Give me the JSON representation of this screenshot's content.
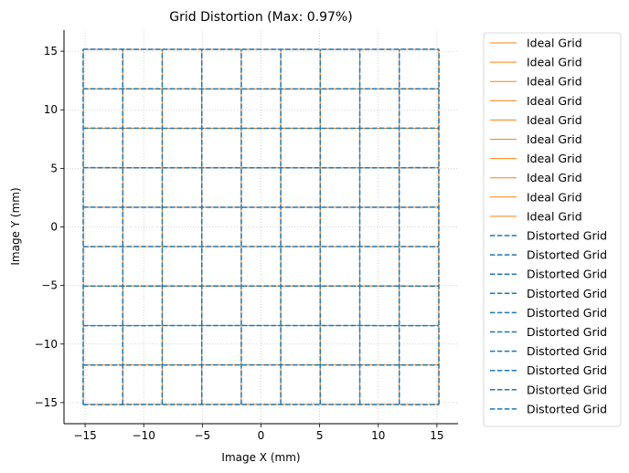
{
  "chart_data": {
    "type": "line",
    "title": "Grid Distortion (Max: 0.97%)",
    "xlabel": "Image X (mm)",
    "ylabel": "Image Y (mm)",
    "xlim": [
      -16.8,
      16.8
    ],
    "ylim": [
      -16.8,
      16.8
    ],
    "xticks": [
      -15,
      -10,
      -5,
      0,
      5,
      10,
      15
    ],
    "yticks": [
      -15,
      -10,
      -5,
      0,
      5,
      10,
      15
    ],
    "xtick_labels": [
      "−15",
      "−10",
      "−5",
      "0",
      "5",
      "10",
      "15"
    ],
    "ytick_labels": [
      "−15",
      "−10",
      "−5",
      "0",
      "5",
      "10",
      "15"
    ],
    "grid": true,
    "legend_position": "outside-right",
    "grid_lines": [
      -15.15,
      -11.78,
      -8.42,
      -5.05,
      -1.68,
      1.68,
      5.05,
      8.42,
      11.78,
      15.15
    ],
    "max_distortion_pct": 0.97,
    "series": [
      {
        "name": "Ideal Grid",
        "style": "solid",
        "color": "#ff7f0e"
      },
      {
        "name": "Ideal Grid",
        "style": "solid",
        "color": "#ff7f0e"
      },
      {
        "name": "Ideal Grid",
        "style": "solid",
        "color": "#ff7f0e"
      },
      {
        "name": "Ideal Grid",
        "style": "solid",
        "color": "#ff7f0e"
      },
      {
        "name": "Ideal Grid",
        "style": "solid",
        "color": "#ff7f0e"
      },
      {
        "name": "Ideal Grid",
        "style": "solid",
        "color": "#ff7f0e"
      },
      {
        "name": "Ideal Grid",
        "style": "solid",
        "color": "#ff7f0e"
      },
      {
        "name": "Ideal Grid",
        "style": "solid",
        "color": "#ff7f0e"
      },
      {
        "name": "Ideal Grid",
        "style": "solid",
        "color": "#ff7f0e"
      },
      {
        "name": "Ideal Grid",
        "style": "solid",
        "color": "#ff7f0e"
      },
      {
        "name": "Distorted Grid",
        "style": "dashed",
        "color": "#1f77b4"
      },
      {
        "name": "Distorted Grid",
        "style": "dashed",
        "color": "#1f77b4"
      },
      {
        "name": "Distorted Grid",
        "style": "dashed",
        "color": "#1f77b4"
      },
      {
        "name": "Distorted Grid",
        "style": "dashed",
        "color": "#1f77b4"
      },
      {
        "name": "Distorted Grid",
        "style": "dashed",
        "color": "#1f77b4"
      },
      {
        "name": "Distorted Grid",
        "style": "dashed",
        "color": "#1f77b4"
      },
      {
        "name": "Distorted Grid",
        "style": "dashed",
        "color": "#1f77b4"
      },
      {
        "name": "Distorted Grid",
        "style": "dashed",
        "color": "#1f77b4"
      },
      {
        "name": "Distorted Grid",
        "style": "dashed",
        "color": "#1f77b4"
      },
      {
        "name": "Distorted Grid",
        "style": "dashed",
        "color": "#1f77b4"
      }
    ]
  }
}
